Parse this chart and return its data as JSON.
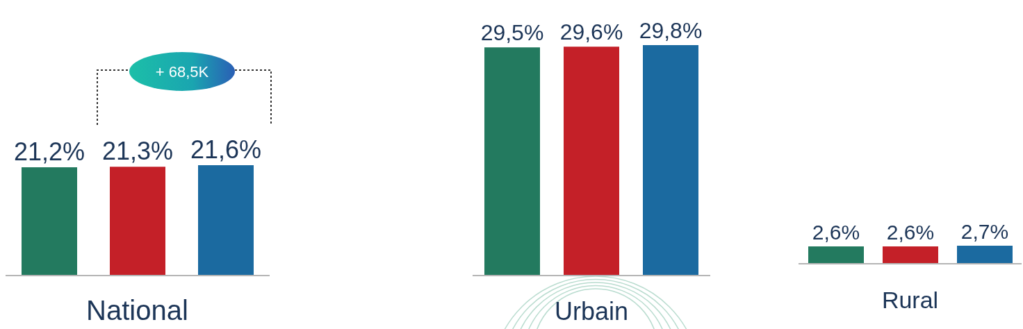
{
  "chart_data": [
    {
      "type": "bar",
      "xlabel": "National",
      "categories": [
        null,
        null,
        null
      ],
      "values": [
        21.2,
        21.3,
        21.6
      ],
      "value_labels": [
        "21,2%",
        "21,3%",
        "21,6%"
      ],
      "colors": [
        "#237a5f",
        "#c42028",
        "#1b6aa0"
      ],
      "annotations": [
        "+ 68,5K"
      ],
      "grid": false,
      "legend": false
    },
    {
      "type": "bar",
      "xlabel": "Urbain",
      "categories": [
        null,
        null,
        null
      ],
      "values": [
        29.5,
        29.6,
        29.8
      ],
      "value_labels": [
        "29,5%",
        "29,6%",
        "29,8%"
      ],
      "colors": [
        "#237a5f",
        "#c42028",
        "#1b6aa0"
      ],
      "grid": false,
      "legend": false
    },
    {
      "type": "bar",
      "xlabel": "Rural",
      "categories": [
        null,
        null,
        null
      ],
      "values": [
        2.6,
        2.6,
        2.7
      ],
      "value_labels": [
        "2,6%",
        "2,6%",
        "2,7%"
      ],
      "colors": [
        "#237a5f",
        "#c42028",
        "#1b6aa0"
      ],
      "grid": false,
      "legend": false
    }
  ]
}
